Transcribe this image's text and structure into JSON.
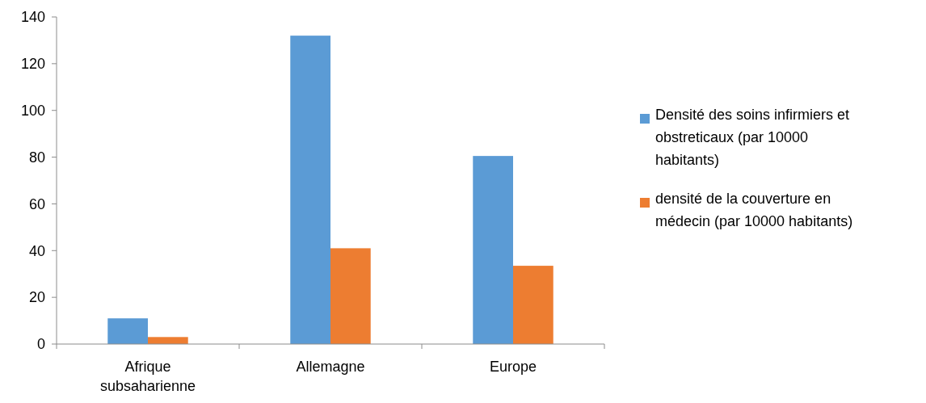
{
  "chart_data": {
    "type": "bar",
    "categories": [
      "Afrique subsaharienne",
      "Allemagne",
      "Europe"
    ],
    "series": [
      {
        "name": "Densité des soins infirmiers et obstreticaux (par 10000 habitants)",
        "color": "#5b9bd5",
        "values": [
          11,
          132,
          80.5
        ]
      },
      {
        "name": "densité de la couverture en médecin (par 10000 habitants)",
        "color": "#ed7d31",
        "values": [
          3,
          41,
          33.5
        ]
      }
    ],
    "ylim": [
      0,
      140
    ],
    "yticks": [
      0,
      20,
      40,
      60,
      80,
      100,
      120,
      140
    ],
    "grid": false,
    "legend": "right"
  }
}
